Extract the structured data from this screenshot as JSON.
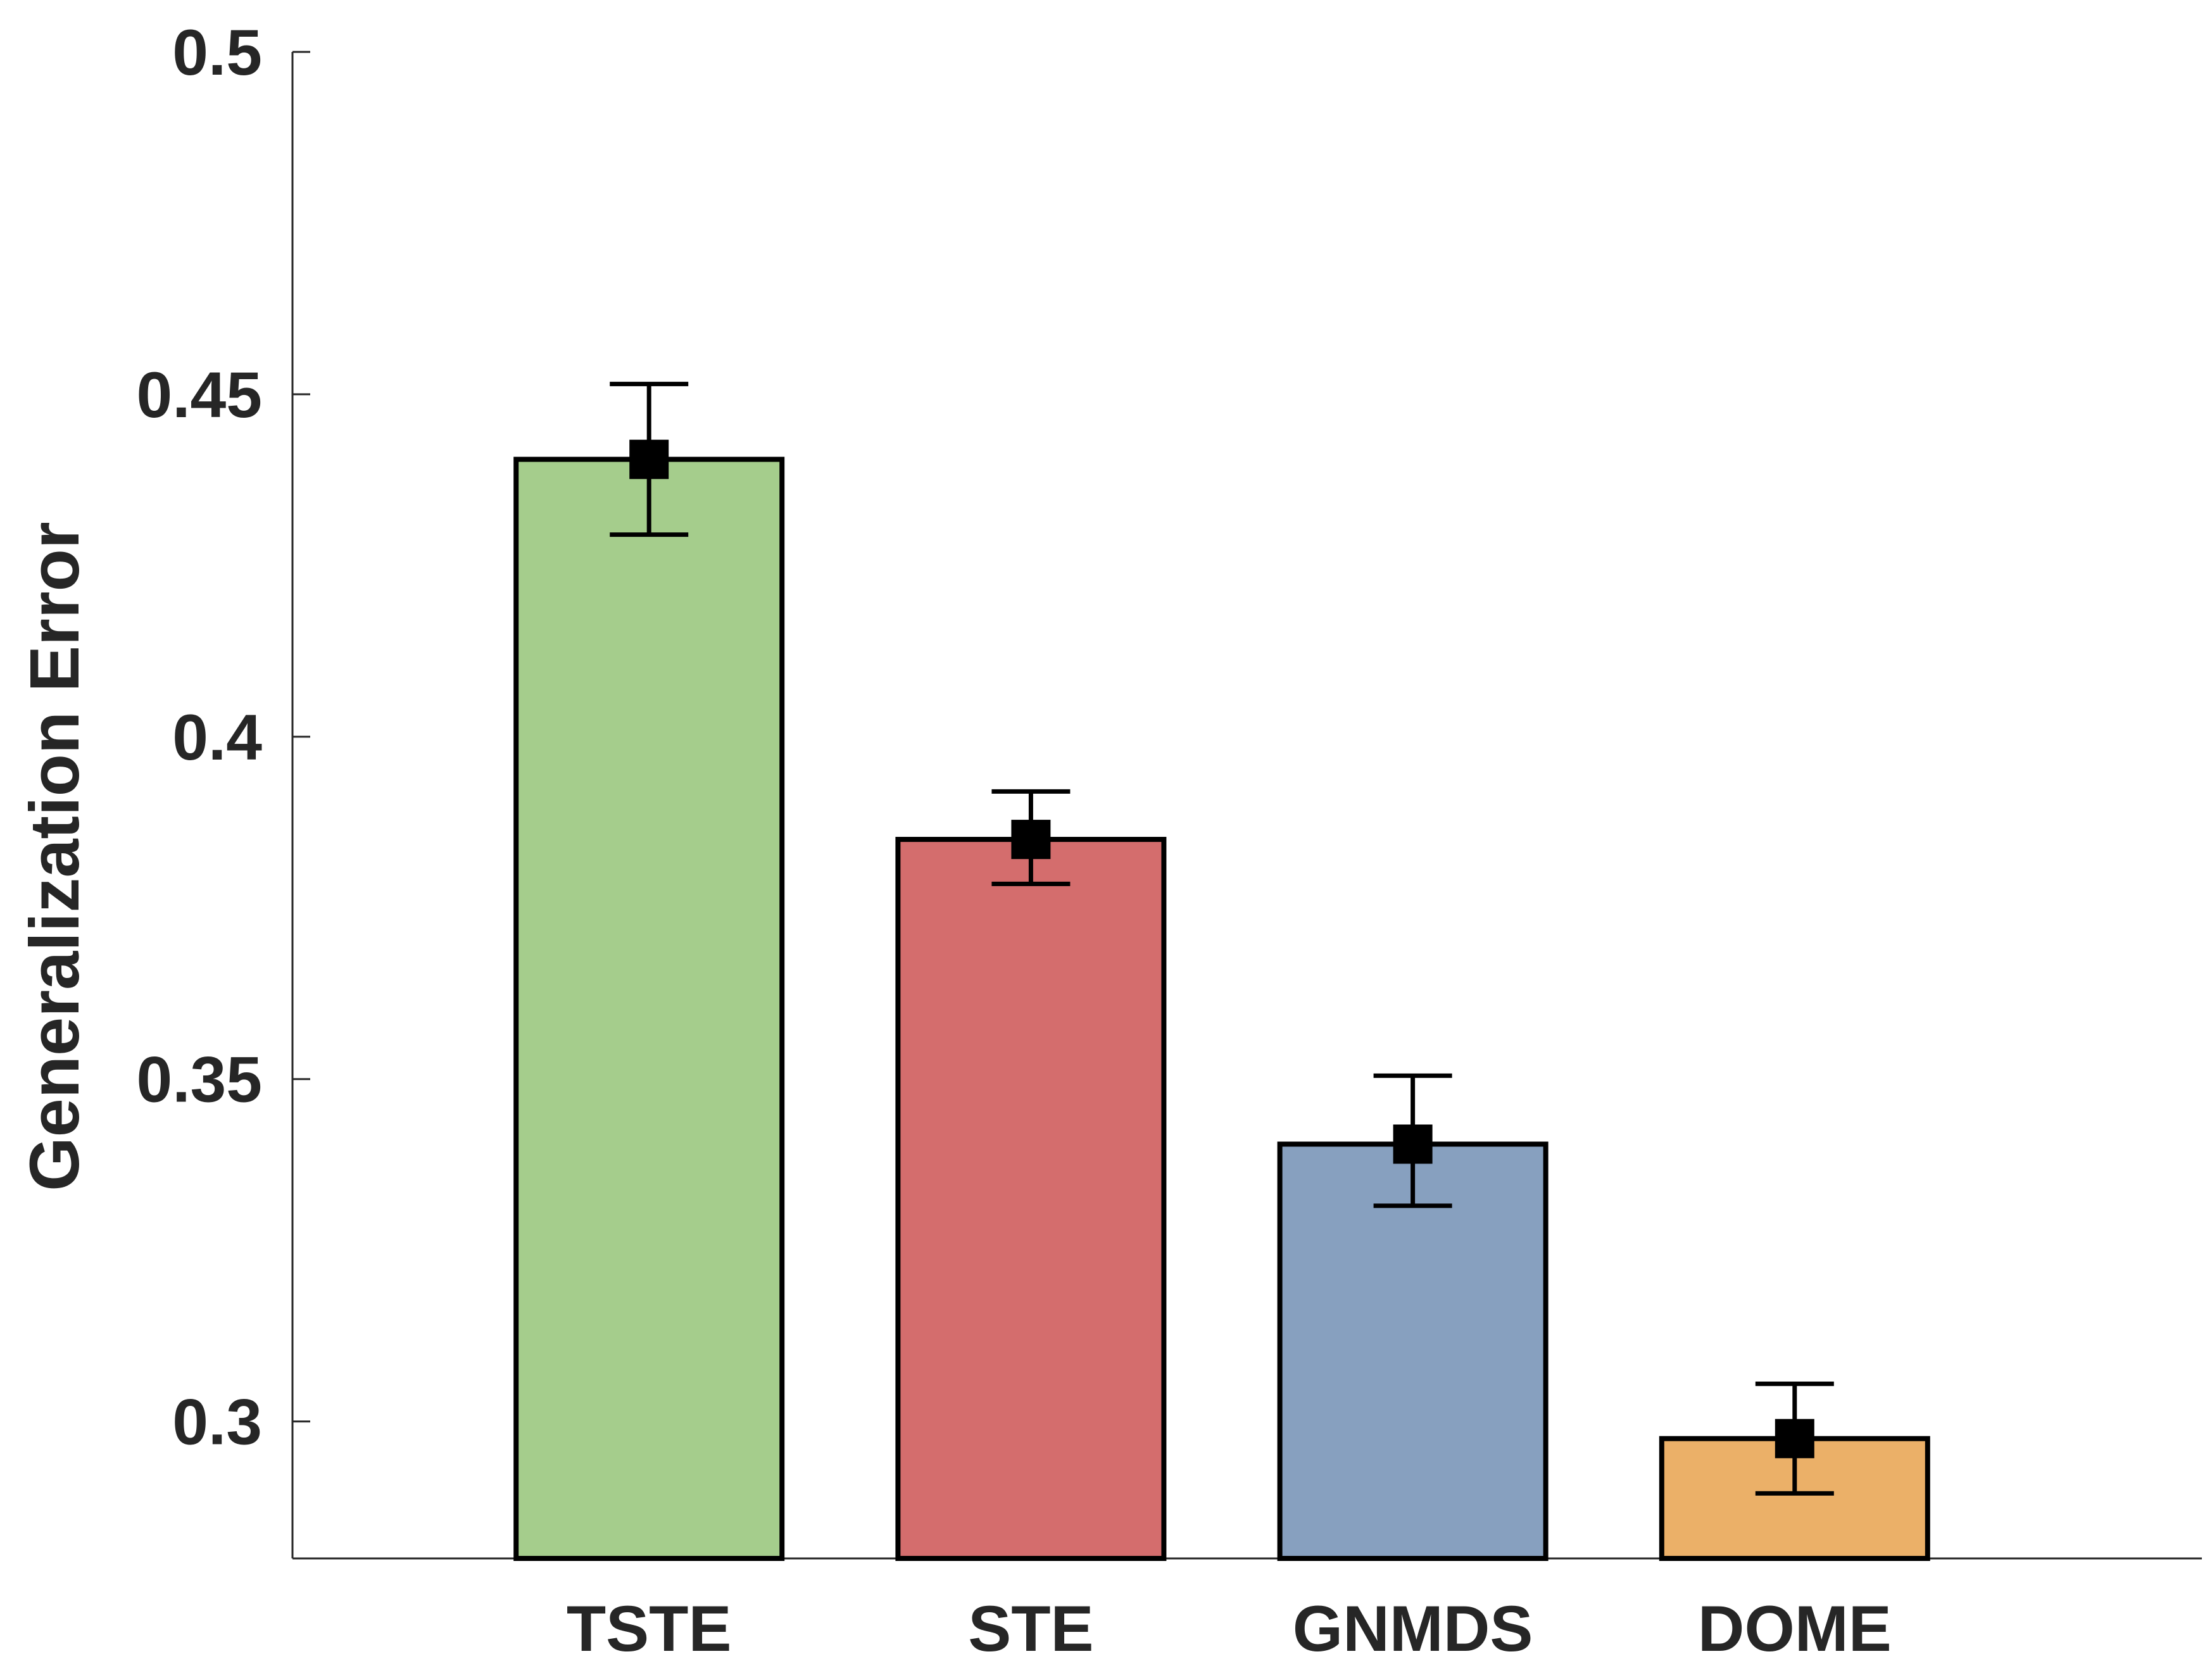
{
  "chart_data": {
    "type": "bar",
    "title": "",
    "xlabel": "",
    "ylabel": "Generalization Error",
    "ylim": [
      0.28,
      0.5
    ],
    "grid": false,
    "yticks": [
      0.3,
      0.35,
      0.4,
      0.45,
      0.5
    ],
    "ytick_labels": [
      "0.3",
      "0.35",
      "0.4",
      "0.45",
      "0.5"
    ],
    "categories": [
      "TSTE",
      "STE",
      "GNMDS",
      "DOME"
    ],
    "values": [
      0.4405,
      0.385,
      0.3405,
      0.2975
    ],
    "error_low": [
      0.4295,
      0.3785,
      0.3315,
      0.2895
    ],
    "error_high": [
      0.4515,
      0.392,
      0.3505,
      0.3055
    ],
    "colors": [
      "#a5cd8c",
      "#d46d6d",
      "#87a0bf",
      "#ebb068"
    ]
  }
}
